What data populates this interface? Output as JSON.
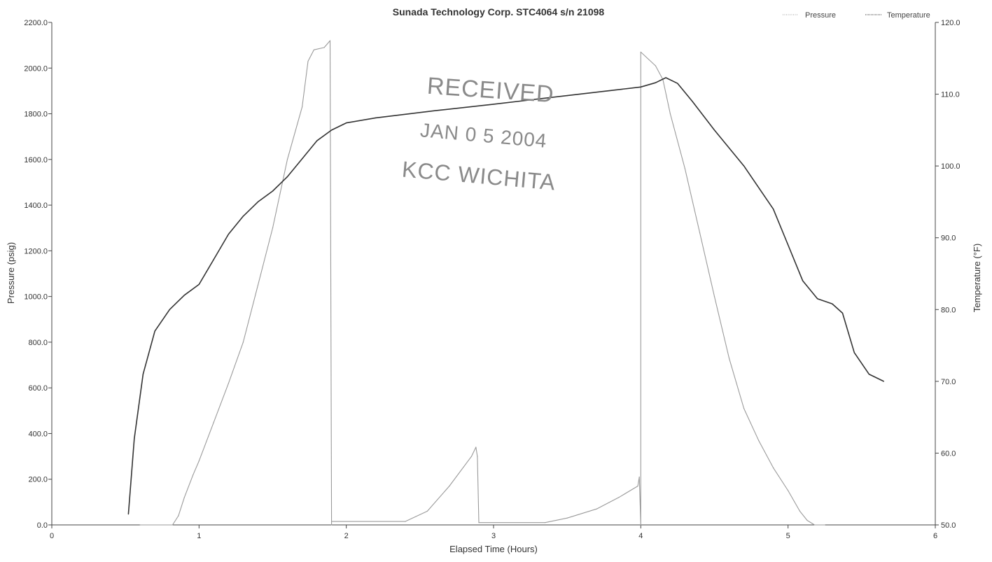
{
  "chart_data": {
    "type": "line",
    "title": "Sunada Technology Corp. STC4064 s/n 21098",
    "xlabel": "Elapsed Time (Hours)",
    "ylabel": "Pressure (psig)",
    "y2label": "Temperature (°F)",
    "xlim": [
      0,
      6
    ],
    "ylim": [
      0,
      2200
    ],
    "y2lim": [
      50,
      120
    ],
    "x_ticks": [
      "0",
      "1",
      "2",
      "3",
      "4",
      "5",
      "6"
    ],
    "y_ticks": [
      "0.0",
      "200.0",
      "400.0",
      "600.0",
      "800.0",
      "1000.0",
      "1200.0",
      "1400.0",
      "1600.0",
      "1800.0",
      "2000.0",
      "2200.0"
    ],
    "y2_ticks": [
      "50.0",
      "60.0",
      "70.0",
      "80.0",
      "90.0",
      "100.0",
      "110.0",
      "120.0"
    ],
    "legend_position": "top-right",
    "series": [
      {
        "name": "Pressure",
        "axis": "left",
        "color": "#9a9a9a",
        "points": [
          [
            0.6,
            0
          ],
          [
            0.82,
            0
          ],
          [
            0.86,
            40
          ],
          [
            0.9,
            120
          ],
          [
            0.96,
            220
          ],
          [
            1.0,
            280
          ],
          [
            1.1,
            450
          ],
          [
            1.2,
            620
          ],
          [
            1.3,
            800
          ],
          [
            1.4,
            1050
          ],
          [
            1.5,
            1300
          ],
          [
            1.55,
            1450
          ],
          [
            1.6,
            1600
          ],
          [
            1.7,
            1830
          ],
          [
            1.74,
            2030
          ],
          [
            1.78,
            2080
          ],
          [
            1.85,
            2090
          ],
          [
            1.89,
            2120
          ],
          [
            1.9,
            0
          ],
          [
            1.9,
            15
          ],
          [
            2.4,
            15
          ],
          [
            2.55,
            60
          ],
          [
            2.7,
            170
          ],
          [
            2.85,
            300
          ],
          [
            2.88,
            340
          ],
          [
            2.89,
            300
          ],
          [
            2.9,
            10
          ],
          [
            3.35,
            10
          ],
          [
            3.5,
            30
          ],
          [
            3.7,
            70
          ],
          [
            3.85,
            120
          ],
          [
            3.98,
            170
          ],
          [
            3.99,
            210
          ],
          [
            4.0,
            0
          ],
          [
            4.0,
            2070
          ],
          [
            4.1,
            2010
          ],
          [
            4.15,
            1950
          ],
          [
            4.2,
            1800
          ],
          [
            4.3,
            1560
          ],
          [
            4.4,
            1280
          ],
          [
            4.5,
            1000
          ],
          [
            4.6,
            730
          ],
          [
            4.7,
            510
          ],
          [
            4.8,
            370
          ],
          [
            4.9,
            250
          ],
          [
            5.0,
            150
          ],
          [
            5.08,
            60
          ],
          [
            5.13,
            20
          ],
          [
            5.18,
            0
          ],
          [
            5.25,
            0
          ]
        ]
      },
      {
        "name": "Temperature",
        "axis": "right",
        "color": "#333333",
        "points": [
          [
            0.52,
            51.5
          ],
          [
            0.56,
            62
          ],
          [
            0.62,
            71
          ],
          [
            0.7,
            77
          ],
          [
            0.8,
            80
          ],
          [
            0.9,
            82
          ],
          [
            1.0,
            83.5
          ],
          [
            1.1,
            87
          ],
          [
            1.2,
            90.5
          ],
          [
            1.3,
            93
          ],
          [
            1.4,
            95
          ],
          [
            1.5,
            96.5
          ],
          [
            1.6,
            98.5
          ],
          [
            1.7,
            101
          ],
          [
            1.8,
            103.5
          ],
          [
            1.9,
            105
          ],
          [
            2.0,
            106
          ],
          [
            2.2,
            106.7
          ],
          [
            2.6,
            107.7
          ],
          [
            3.0,
            108.6
          ],
          [
            3.5,
            109.8
          ],
          [
            4.0,
            111
          ],
          [
            4.1,
            111.6
          ],
          [
            4.17,
            112.3
          ],
          [
            4.25,
            111.5
          ],
          [
            4.35,
            109
          ],
          [
            4.5,
            105
          ],
          [
            4.7,
            100
          ],
          [
            4.9,
            94
          ],
          [
            5.0,
            89
          ],
          [
            5.1,
            84
          ],
          [
            5.2,
            81.5
          ],
          [
            5.3,
            80.8
          ],
          [
            5.37,
            79.5
          ],
          [
            5.45,
            74
          ],
          [
            5.55,
            71
          ],
          [
            5.65,
            70
          ]
        ]
      }
    ]
  },
  "stamp": {
    "line1": "RECEIVED",
    "line2": "JAN 0 5 2004",
    "line3": "KCC WICHITA"
  }
}
